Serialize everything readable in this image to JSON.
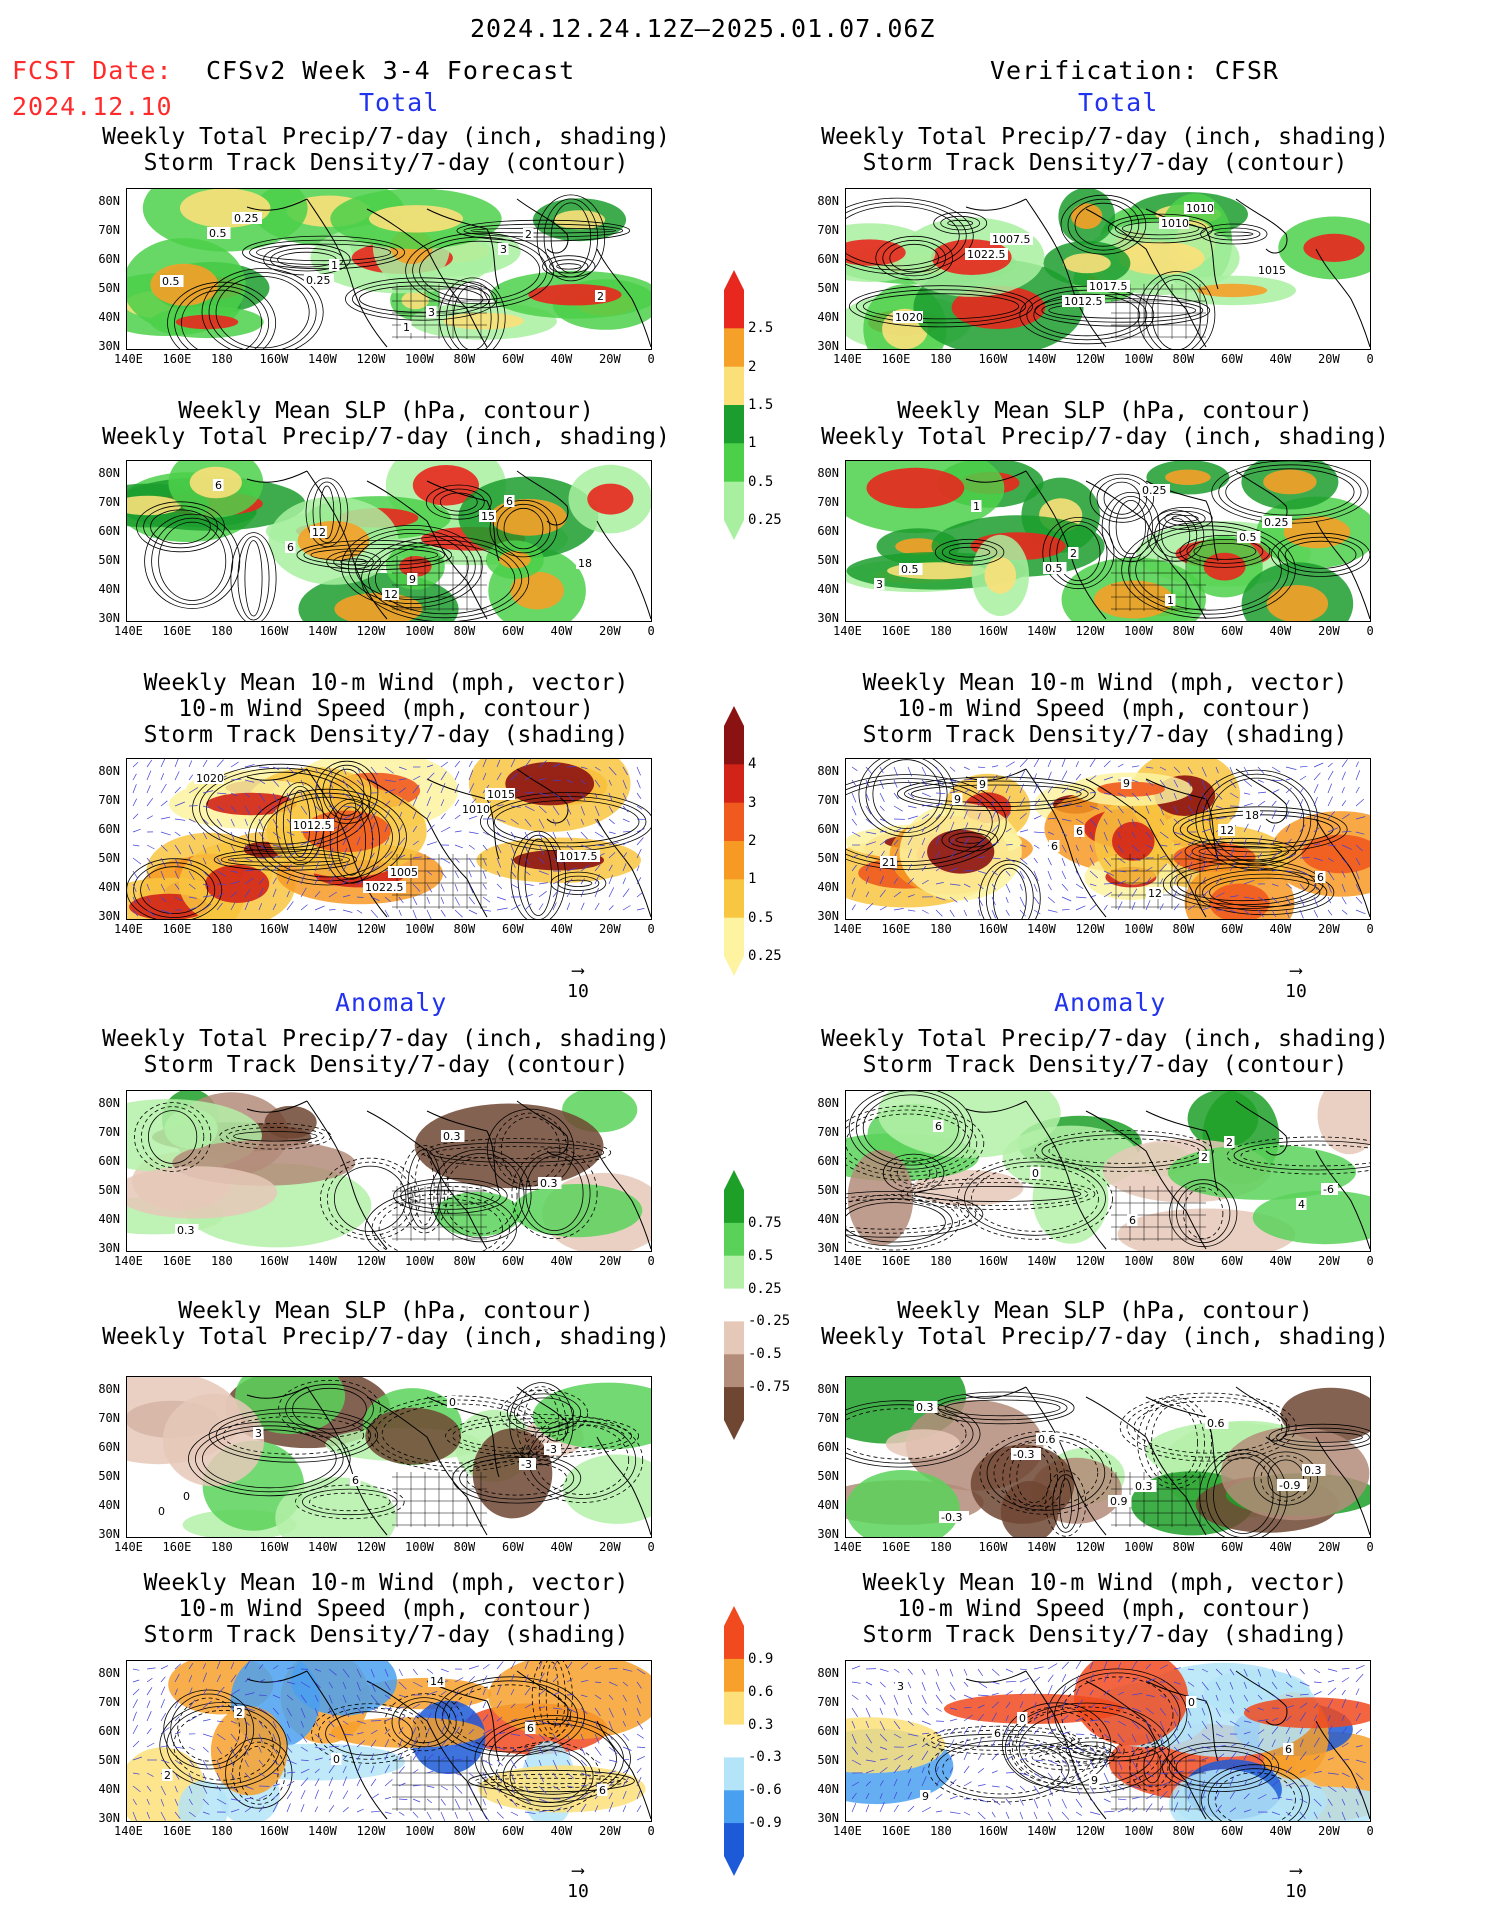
{
  "header": {
    "period": "2024.12.24.12Z–2025.01.07.06Z",
    "fcst_label": "FCST Date:",
    "fcst_date": "2024.12.10",
    "model": "CFSv2 Week 3-4 Forecast",
    "verification": "Verification: CFSR"
  },
  "sections": {
    "total": "Total",
    "anomaly": "Anomaly"
  },
  "titles": {
    "precip_storm": [
      "Weekly Total Precip/7-day (inch, shading)",
      "Storm Track Density/7-day (contour)"
    ],
    "slp_precip": [
      "Weekly Mean SLP (hPa, contour)",
      "Weekly Total Precip/7-day (inch, shading)"
    ],
    "wind_storm": [
      "Weekly Mean 10-m Wind (mph, vector)",
      "10-m Wind Speed (mph, contour)",
      "Storm Track Density/7-day (shading)"
    ]
  },
  "axes": {
    "lat": [
      "80N",
      "70N",
      "60N",
      "50N",
      "40N",
      "30N"
    ],
    "lon": [
      "140E",
      "160E",
      "180",
      "160W",
      "140W",
      "120W",
      "100W",
      "80W",
      "60W",
      "40W",
      "20W",
      "0"
    ]
  },
  "vector_ref": "10",
  "colorbars": {
    "precip_total": {
      "labels": [
        "2.5",
        "2",
        "1.5",
        "1",
        "0.5",
        "0.25"
      ],
      "colors": [
        "#e8281e",
        "#f5a028",
        "#fbe07a",
        "#1c9e2e",
        "#4cd04a",
        "#a8f0a0"
      ]
    },
    "storm_total": {
      "labels": [
        "4",
        "3",
        "2",
        "1",
        "0.5",
        "0.25"
      ],
      "colors": [
        "#8b1212",
        "#d22318",
        "#f05a1e",
        "#f79a24",
        "#f8c640",
        "#fdf3a0"
      ]
    },
    "precip_anom": {
      "labels": [
        "0.75",
        "0.5",
        "0.25",
        "-0.25",
        "-0.5",
        "-0.75"
      ],
      "colors": [
        "#1ea028",
        "#5ad25a",
        "#b4f0a8",
        "#ffffff",
        "#e6c8b8",
        "#b48c7a",
        "#6e4632"
      ]
    },
    "storm_anom": {
      "labels": [
        "0.9",
        "0.6",
        "0.3",
        "-0.3",
        "-0.6",
        "-0.9"
      ],
      "colors": [
        "#f04a1e",
        "#f7a02c",
        "#fde07a",
        "#ffffff",
        "#b4e4f8",
        "#4aa0f0",
        "#1c5ad8"
      ]
    }
  },
  "contour_labels": {
    "p1": [
      "0.5",
      "0.25",
      "1",
      "3",
      "2",
      "0.25",
      "1",
      "3",
      "2",
      "0.5"
    ],
    "p2": [
      "1022.5",
      "1012.5",
      "1010",
      "1015",
      "1020",
      "1007.5",
      "1017.5",
      "1010"
    ],
    "p3": [
      "6",
      "12",
      "15",
      "18",
      "6",
      "12",
      "9",
      "6"
    ],
    "p4": [
      "0.5",
      "0.25",
      "0.5",
      "3",
      "1",
      "2",
      "1",
      "0.25",
      "0.5"
    ],
    "p5": [
      "1022.5",
      "1010",
      "1017.5",
      "1020",
      "1012.5",
      "1005",
      "1015"
    ],
    "p6": [
      "9",
      "12",
      "6",
      "9",
      "6",
      "12",
      "18",
      "21",
      "9",
      "6"
    ],
    "p7": [
      "0.3",
      "0.3",
      "0.3"
    ],
    "p8": [
      "2",
      "4",
      "6",
      "0",
      "6",
      "2",
      "-6"
    ],
    "p9": [
      "-3",
      "0",
      "3",
      "6",
      "0",
      "-3",
      "0"
    ],
    "p10": [
      "-0.9",
      "0.3",
      "-0.3",
      "0.9",
      "0.6",
      "0.3",
      "-0.3",
      "0.6",
      "0.3"
    ],
    "p11": [
      "6",
      "2",
      "0",
      "14",
      "6",
      "2"
    ],
    "p12": [
      "3",
      "6",
      "9",
      "0",
      "6",
      "9",
      "0"
    ]
  }
}
